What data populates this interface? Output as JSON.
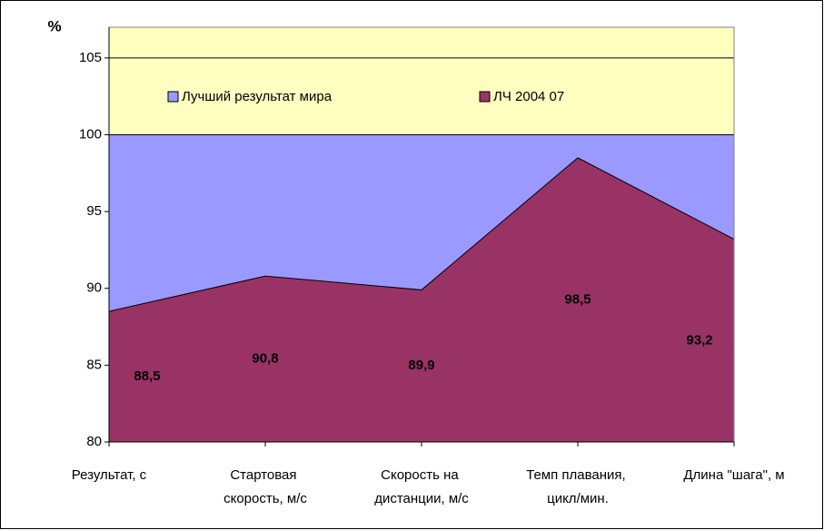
{
  "chart_data": {
    "type": "area",
    "y_label": "%",
    "categories": [
      "Результат, с",
      "Стартовая скорость, м/с",
      "Скорость на дистанции, м/с",
      "Темп плавания, цикл/мин.",
      "Длина \"шага\", м"
    ],
    "series": [
      {
        "name": "Лучший результат мира",
        "color": "#9999ff",
        "values": [
          100,
          100,
          100,
          100,
          100
        ]
      },
      {
        "name": "ЛЧ 2004 07",
        "color": "#993366",
        "values": [
          88.5,
          90.8,
          89.9,
          98.5,
          93.2
        ],
        "value_labels": [
          "88,5",
          "90,8",
          "89,9",
          "98,5",
          "93,2"
        ]
      }
    ],
    "ylim": [
      80,
      107
    ],
    "yticks": [
      80,
      85,
      90,
      95,
      100,
      105
    ],
    "plot_background": "#ffffc0",
    "grid": true,
    "legend": "top"
  }
}
